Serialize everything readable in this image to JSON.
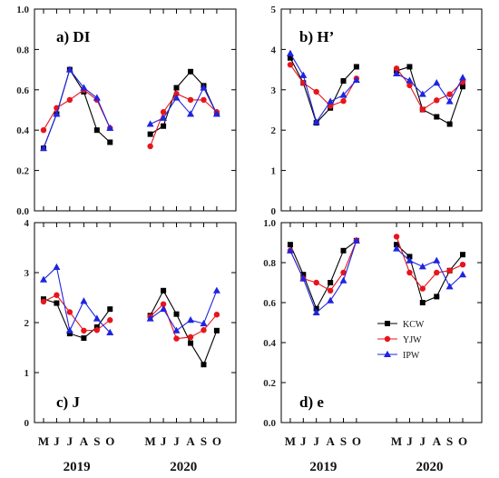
{
  "chart_data": [
    {
      "type": "line",
      "title": "a) DI",
      "ylim": [
        0.0,
        1.0
      ],
      "yticks": [
        "0.0",
        "0.2",
        "0.4",
        "0.6",
        "0.8",
        "1.0"
      ],
      "categories": [
        "M",
        "J",
        "J",
        "A",
        "S",
        "O",
        "M",
        "J",
        "J",
        "A",
        "S",
        "O"
      ],
      "series": [
        {
          "name": "KCW",
          "color": "#000000",
          "marker": "square",
          "values": [
            [
              0.31,
              0.48,
              0.7,
              0.59,
              0.4,
              0.34
            ],
            [
              0.38,
              0.42,
              0.61,
              0.69,
              0.62,
              0.48
            ]
          ]
        },
        {
          "name": "YJW",
          "color": "#e8141b",
          "marker": "circle",
          "values": [
            [
              0.4,
              0.51,
              0.55,
              0.6,
              0.55,
              0.41
            ],
            [
              0.32,
              0.49,
              0.58,
              0.55,
              0.55,
              0.49
            ]
          ]
        },
        {
          "name": "IPW",
          "color": "#1f24e0",
          "marker": "triangle",
          "values": [
            [
              0.31,
              0.48,
              0.7,
              0.61,
              0.56,
              0.41
            ],
            [
              0.43,
              0.46,
              0.56,
              0.48,
              0.61,
              0.48
            ]
          ]
        }
      ]
    },
    {
      "type": "line",
      "title": "b) H’",
      "ylim": [
        0,
        5
      ],
      "yticks": [
        "0",
        "1",
        "2",
        "3",
        "4",
        "5"
      ],
      "categories": [
        "M",
        "J",
        "J",
        "A",
        "S",
        "O",
        "M",
        "J",
        "J",
        "A",
        "S",
        "O"
      ],
      "series": [
        {
          "name": "KCW",
          "color": "#000000",
          "marker": "square",
          "values": [
            [
              3.79,
              3.17,
              2.18,
              2.55,
              3.22,
              3.57
            ],
            [
              3.47,
              3.57,
              2.51,
              2.33,
              2.15,
              3.08
            ]
          ]
        },
        {
          "name": "YJW",
          "color": "#e8141b",
          "marker": "circle",
          "values": [
            [
              3.62,
              3.17,
              2.95,
              2.6,
              2.72,
              3.28
            ],
            [
              3.53,
              3.11,
              2.51,
              2.74,
              2.89,
              3.19
            ]
          ]
        },
        {
          "name": "IPW",
          "color": "#1f24e0",
          "marker": "triangle",
          "values": [
            [
              3.9,
              3.36,
              2.2,
              2.71,
              2.87,
              3.24
            ],
            [
              3.4,
              3.23,
              2.89,
              3.17,
              2.71,
              3.3
            ]
          ]
        }
      ]
    },
    {
      "type": "line",
      "title": "c) J",
      "ylim": [
        0,
        4
      ],
      "yticks": [
        "0",
        "1",
        "2",
        "3",
        "4"
      ],
      "categories": [
        "M",
        "J",
        "J",
        "A",
        "S",
        "O",
        "M",
        "J",
        "J",
        "A",
        "S",
        "O"
      ],
      "series": [
        {
          "name": "KCW",
          "color": "#000000",
          "marker": "square",
          "values": [
            [
              2.47,
              2.39,
              1.78,
              1.69,
              1.91,
              2.27
            ],
            [
              2.14,
              2.64,
              2.17,
              1.59,
              1.16,
              1.84
            ]
          ]
        },
        {
          "name": "YJW",
          "color": "#e8141b",
          "marker": "circle",
          "values": [
            [
              2.42,
              2.55,
              2.21,
              1.84,
              1.85,
              2.05
            ],
            [
              2.12,
              2.37,
              1.68,
              1.71,
              1.85,
              2.16
            ]
          ]
        },
        {
          "name": "IPW",
          "color": "#1f24e0",
          "marker": "triangle",
          "values": [
            [
              2.86,
              3.11,
              1.84,
              2.43,
              2.08,
              1.8
            ],
            [
              2.08,
              2.27,
              1.84,
              2.05,
              1.98,
              2.64
            ]
          ]
        }
      ]
    },
    {
      "type": "line",
      "title": "d) e",
      "ylim": [
        0.0,
        1.0
      ],
      "yticks": [
        "0.0",
        "0.2",
        "0.4",
        "0.6",
        "0.8",
        "1.0"
      ],
      "categories": [
        "M",
        "J",
        "J",
        "A",
        "S",
        "O",
        "M",
        "J",
        "J",
        "A",
        "S",
        "O"
      ],
      "legend": {
        "placement": "right",
        "entries": [
          "KCW",
          "YJW",
          "IPW"
        ]
      },
      "series": [
        {
          "name": "KCW",
          "color": "#000000",
          "marker": "square",
          "values": [
            [
              0.89,
              0.74,
              0.57,
              0.7,
              0.86,
              0.91
            ],
            [
              0.89,
              0.83,
              0.6,
              0.63,
              0.76,
              0.84
            ]
          ]
        },
        {
          "name": "YJW",
          "color": "#e8141b",
          "marker": "circle",
          "values": [
            [
              0.86,
              0.72,
              0.7,
              0.66,
              0.75,
              0.91
            ],
            [
              0.93,
              0.75,
              0.67,
              0.75,
              0.76,
              0.79
            ]
          ]
        },
        {
          "name": "IPW",
          "color": "#1f24e0",
          "marker": "triangle",
          "values": [
            [
              0.86,
              0.72,
              0.55,
              0.61,
              0.71,
              0.91
            ],
            [
              0.87,
              0.81,
              0.78,
              0.81,
              0.68,
              0.74
            ]
          ]
        }
      ]
    }
  ],
  "xaxis": {
    "month_labels": [
      "M",
      "J",
      "J",
      "A",
      "S",
      "O",
      "M",
      "J",
      "J",
      "A",
      "S",
      "O"
    ],
    "year_labels": [
      "2019",
      "2020"
    ]
  }
}
